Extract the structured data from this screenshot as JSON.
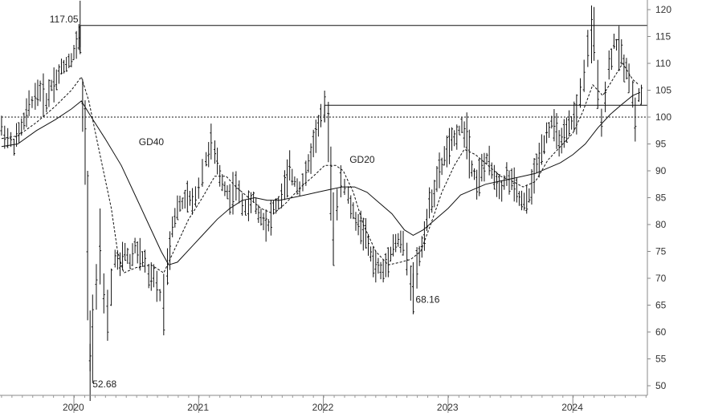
{
  "chart_data": {
    "type": "line",
    "style": "ohlc-bars-with-moving-averages",
    "title": "",
    "xlabel": "",
    "ylabel": "",
    "x_ticks": [
      "2020",
      "2021",
      "2022",
      "2023",
      "2024"
    ],
    "y_ticks": [
      50,
      55,
      60,
      65,
      70,
      75,
      80,
      85,
      90,
      95,
      100,
      105,
      110,
      115,
      120
    ],
    "ylim": [
      48,
      121
    ],
    "xlim": [
      2019.42,
      2024.79
    ],
    "y_axis_position": "right",
    "grid": false,
    "price_series": {
      "name": "",
      "points": [
        [
          2019.42,
          98
        ],
        [
          2019.47,
          96
        ],
        [
          2019.52,
          95
        ],
        [
          2019.56,
          97
        ],
        [
          2019.6,
          99
        ],
        [
          2019.64,
          102
        ],
        [
          2019.69,
          104
        ],
        [
          2019.73,
          105
        ],
        [
          2019.78,
          103
        ],
        [
          2019.82,
          106
        ],
        [
          2019.86,
          107
        ],
        [
          2019.9,
          109
        ],
        [
          2019.94,
          110
        ],
        [
          2019.98,
          111
        ],
        [
          2020.02,
          113
        ],
        [
          2020.04,
          115
        ],
        [
          2020.05,
          117.05
        ],
        [
          2020.07,
          102
        ],
        [
          2020.09,
          94
        ],
        [
          2020.11,
          75
        ],
        [
          2020.13,
          52.68
        ],
        [
          2020.15,
          60
        ],
        [
          2020.18,
          70
        ],
        [
          2020.21,
          76
        ],
        [
          2020.24,
          66
        ],
        [
          2020.27,
          62
        ],
        [
          2020.3,
          68
        ],
        [
          2020.33,
          74
        ],
        [
          2020.37,
          72
        ],
        [
          2020.41,
          75
        ],
        [
          2020.45,
          73
        ],
        [
          2020.49,
          76
        ],
        [
          2020.53,
          74
        ],
        [
          2020.57,
          73
        ],
        [
          2020.6,
          70
        ],
        [
          2020.64,
          70
        ],
        [
          2020.69,
          67
        ],
        [
          2020.72,
          66
        ],
        [
          2020.75,
          72
        ],
        [
          2020.79,
          80
        ],
        [
          2020.83,
          83
        ],
        [
          2020.87,
          84
        ],
        [
          2020.91,
          85
        ],
        [
          2020.95,
          84
        ],
        [
          2021.0,
          87
        ],
        [
          2021.03,
          90
        ],
        [
          2021.06,
          92
        ],
        [
          2021.1,
          95
        ],
        [
          2021.13,
          93
        ],
        [
          2021.17,
          89
        ],
        [
          2021.21,
          87
        ],
        [
          2021.25,
          85
        ],
        [
          2021.3,
          87
        ],
        [
          2021.35,
          84
        ],
        [
          2021.4,
          83
        ],
        [
          2021.44,
          85
        ],
        [
          2021.48,
          82
        ],
        [
          2021.52,
          81
        ],
        [
          2021.56,
          80
        ],
        [
          2021.6,
          83
        ],
        [
          2021.64,
          84
        ],
        [
          2021.69,
          87
        ],
        [
          2021.73,
          90
        ],
        [
          2021.77,
          88
        ],
        [
          2021.81,
          87
        ],
        [
          2021.86,
          89
        ],
        [
          2021.9,
          93
        ],
        [
          2021.94,
          97
        ],
        [
          2021.98,
          100
        ],
        [
          2022.01,
          101
        ],
        [
          2022.04,
          99
        ],
        [
          2022.06,
          88
        ],
        [
          2022.08,
          77
        ],
        [
          2022.11,
          83
        ],
        [
          2022.14,
          88
        ],
        [
          2022.17,
          87
        ],
        [
          2022.2,
          85
        ],
        [
          2022.24,
          82
        ],
        [
          2022.28,
          80
        ],
        [
          2022.32,
          79
        ],
        [
          2022.36,
          76
        ],
        [
          2022.4,
          73
        ],
        [
          2022.44,
          72
        ],
        [
          2022.48,
          71
        ],
        [
          2022.52,
          74
        ],
        [
          2022.56,
          76
        ],
        [
          2022.6,
          77
        ],
        [
          2022.64,
          76
        ],
        [
          2022.67,
          73
        ],
        [
          2022.7,
          70
        ],
        [
          2022.72,
          68.16
        ],
        [
          2022.75,
          72
        ],
        [
          2022.79,
          76
        ],
        [
          2022.83,
          81
        ],
        [
          2022.87,
          85
        ],
        [
          2022.91,
          88
        ],
        [
          2022.95,
          91
        ],
        [
          2022.99,
          94
        ],
        [
          2023.03,
          95
        ],
        [
          2023.07,
          97
        ],
        [
          2023.11,
          98
        ],
        [
          2023.15,
          97
        ],
        [
          2023.19,
          91
        ],
        [
          2023.23,
          88
        ],
        [
          2023.27,
          90
        ],
        [
          2023.31,
          92
        ],
        [
          2023.35,
          90
        ],
        [
          2023.39,
          88
        ],
        [
          2023.43,
          87
        ],
        [
          2023.47,
          89
        ],
        [
          2023.51,
          88
        ],
        [
          2023.55,
          86
        ],
        [
          2023.59,
          84
        ],
        [
          2023.63,
          84
        ],
        [
          2023.67,
          87
        ],
        [
          2023.71,
          91
        ],
        [
          2023.75,
          94
        ],
        [
          2023.79,
          97
        ],
        [
          2023.83,
          99
        ],
        [
          2023.87,
          97
        ],
        [
          2023.91,
          95
        ],
        [
          2023.95,
          97
        ],
        [
          2023.99,
          99
        ],
        [
          2024.03,
          101
        ],
        [
          2024.06,
          104
        ],
        [
          2024.09,
          108
        ],
        [
          2024.12,
          112
        ],
        [
          2024.15,
          117
        ],
        [
          2024.17,
          114
        ],
        [
          2024.2,
          106
        ],
        [
          2024.23,
          100
        ],
        [
          2024.26,
          104
        ],
        [
          2024.29,
          109
        ],
        [
          2024.33,
          114
        ],
        [
          2024.37,
          113
        ],
        [
          2024.41,
          110
        ],
        [
          2024.45,
          108
        ],
        [
          2024.48,
          104
        ],
        [
          2024.5,
          100
        ],
        [
          2024.53,
          104
        ]
      ]
    },
    "moving_averages": [
      {
        "name": "GD20",
        "line": "dashed",
        "points": [
          [
            2019.42,
            96
          ],
          [
            2019.55,
            96.5
          ],
          [
            2019.7,
            99
          ],
          [
            2019.85,
            102
          ],
          [
            2019.98,
            105
          ],
          [
            2020.06,
            107.5
          ],
          [
            2020.12,
            103
          ],
          [
            2020.2,
            94
          ],
          [
            2020.3,
            83
          ],
          [
            2020.35,
            75
          ],
          [
            2020.4,
            71
          ],
          [
            2020.5,
            72
          ],
          [
            2020.62,
            72.5
          ],
          [
            2020.72,
            71
          ],
          [
            2020.82,
            76
          ],
          [
            2020.92,
            81
          ],
          [
            2021.03,
            85
          ],
          [
            2021.13,
            89
          ],
          [
            2021.22,
            89
          ],
          [
            2021.3,
            87
          ],
          [
            2021.4,
            85
          ],
          [
            2021.5,
            83
          ],
          [
            2021.6,
            82
          ],
          [
            2021.7,
            84
          ],
          [
            2021.82,
            87
          ],
          [
            2021.92,
            89
          ],
          [
            2022.01,
            91
          ],
          [
            2022.1,
            91
          ],
          [
            2022.16,
            90
          ],
          [
            2022.24,
            86
          ],
          [
            2022.32,
            80
          ],
          [
            2022.42,
            75
          ],
          [
            2022.52,
            72.5
          ],
          [
            2022.62,
            73
          ],
          [
            2022.7,
            73.5
          ],
          [
            2022.78,
            75
          ],
          [
            2022.86,
            80
          ],
          [
            2022.95,
            86
          ],
          [
            2023.05,
            91
          ],
          [
            2023.13,
            94
          ],
          [
            2023.22,
            93
          ],
          [
            2023.32,
            91
          ],
          [
            2023.42,
            89
          ],
          [
            2023.52,
            88
          ],
          [
            2023.6,
            87
          ],
          [
            2023.7,
            88
          ],
          [
            2023.8,
            92
          ],
          [
            2023.9,
            94.5
          ],
          [
            2024.0,
            97
          ],
          [
            2024.08,
            101
          ],
          [
            2024.16,
            106
          ],
          [
            2024.24,
            104
          ],
          [
            2024.32,
            107
          ],
          [
            2024.4,
            110
          ],
          [
            2024.48,
            107
          ],
          [
            2024.53,
            106
          ]
        ]
      },
      {
        "name": "GD40",
        "line": "solid",
        "points": [
          [
            2019.42,
            94.5
          ],
          [
            2019.55,
            95
          ],
          [
            2019.7,
            97.5
          ],
          [
            2019.85,
            99.5
          ],
          [
            2019.98,
            101.5
          ],
          [
            2020.06,
            103
          ],
          [
            2020.14,
            100
          ],
          [
            2020.25,
            96
          ],
          [
            2020.38,
            91
          ],
          [
            2020.5,
            85
          ],
          [
            2020.6,
            80
          ],
          [
            2020.7,
            75
          ],
          [
            2020.76,
            72.5
          ],
          [
            2020.83,
            73
          ],
          [
            2020.95,
            76
          ],
          [
            2021.05,
            78.5
          ],
          [
            2021.15,
            81
          ],
          [
            2021.25,
            83
          ],
          [
            2021.35,
            84.5
          ],
          [
            2021.45,
            85
          ],
          [
            2021.55,
            84.5
          ],
          [
            2021.65,
            84.5
          ],
          [
            2021.75,
            85
          ],
          [
            2021.85,
            85.5
          ],
          [
            2021.95,
            86
          ],
          [
            2022.05,
            86.5
          ],
          [
            2022.15,
            87
          ],
          [
            2022.25,
            87
          ],
          [
            2022.35,
            86
          ],
          [
            2022.45,
            84
          ],
          [
            2022.55,
            82
          ],
          [
            2022.65,
            79
          ],
          [
            2022.72,
            78
          ],
          [
            2022.8,
            79
          ],
          [
            2022.9,
            81
          ],
          [
            2023.0,
            83
          ],
          [
            2023.1,
            85.5
          ],
          [
            2023.2,
            86.5
          ],
          [
            2023.3,
            87.5
          ],
          [
            2023.4,
            88
          ],
          [
            2023.5,
            88.5
          ],
          [
            2023.6,
            89
          ],
          [
            2023.7,
            89.5
          ],
          [
            2023.8,
            90.5
          ],
          [
            2023.9,
            91.5
          ],
          [
            2024.0,
            93
          ],
          [
            2024.1,
            95
          ],
          [
            2024.2,
            98
          ],
          [
            2024.3,
            100.5
          ],
          [
            2024.4,
            102.5
          ],
          [
            2024.48,
            104
          ],
          [
            2024.53,
            104.5
          ]
        ]
      }
    ],
    "reference_lines": [
      {
        "start_x": 2020.05,
        "end_x": 2024.79,
        "y": 117.05,
        "style": "solid"
      },
      {
        "start_x": 2022.01,
        "end_x": 2024.79,
        "y": 102.2,
        "style": "solid"
      },
      {
        "start_x": 2019.42,
        "end_x": 2024.79,
        "y": 100,
        "style": "dotted"
      }
    ],
    "annotations": [
      {
        "text": "117.05",
        "x": 2020.05,
        "y": 117.05
      },
      {
        "text": "52.68",
        "x": 2020.13,
        "y": 52.68
      },
      {
        "text": "68.16",
        "x": 2022.72,
        "y": 68.16
      },
      {
        "text": "GD40",
        "x": 2020.52,
        "y": 94.8
      },
      {
        "text": "GD20",
        "x": 2022.21,
        "y": 91.5
      }
    ]
  }
}
